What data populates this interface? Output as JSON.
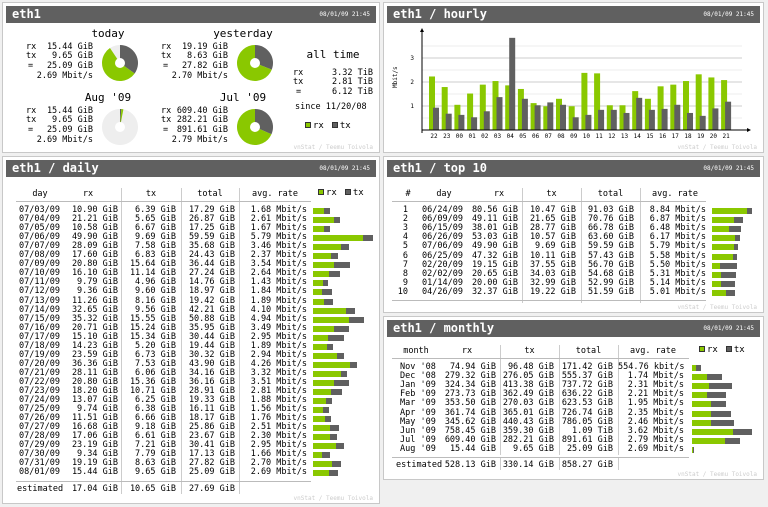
{
  "colors": {
    "rx": "#8ac800",
    "tx": "#606060",
    "remaining": "#eeeeee"
  },
  "timestamp": "08/01/09 21:45",
  "footer": "vnStat / Teemu Toivola",
  "legend": {
    "rx": "rx",
    "tx": "tx"
  },
  "summary": {
    "title": "eth1",
    "labels": {
      "rx": "rx",
      "tx": "tx",
      "total": "="
    },
    "blocks": [
      {
        "name": "today",
        "rx": "15.44 GiB",
        "tx": "9.65 GiB",
        "total": "25.09 GiB",
        "rate": "2.69 Mbit/s",
        "rx_gib": 15.44,
        "tx_gib": 9.65,
        "elapsed_fraction": 0.906
      },
      {
        "name": "yesterday",
        "rx": "19.19 GiB",
        "tx": "8.63 GiB",
        "total": "27.82 GiB",
        "rate": "2.70 Mbit/s",
        "rx_gib": 19.19,
        "tx_gib": 8.63,
        "elapsed_fraction": 1
      },
      {
        "name": "Aug '09",
        "rx": "15.44 GiB",
        "tx": "9.65 GiB",
        "total": "25.09 GiB",
        "rate": "2.69 Mbit/s",
        "rx_gib": 15.44,
        "tx_gib": 9.65,
        "elapsed_fraction": 0.03
      },
      {
        "name": "Jul '09",
        "rx": "609.40 GiB",
        "tx": "282.21 GiB",
        "total": "891.61 GiB",
        "rate": "2.79 Mbit/s",
        "rx_gib": 609.4,
        "tx_gib": 282.21,
        "elapsed_fraction": 1
      }
    ],
    "alltime": {
      "title": "all time",
      "rx": "3.32 TiB",
      "tx": "2.81 TiB",
      "total": "6.12 TiB",
      "since": "since 11/20/08"
    }
  },
  "hourly": {
    "title": "eth1 / hourly",
    "chart_data": {
      "type": "bar",
      "ylabel": "Mbit/s",
      "yticks": [
        "1",
        "2",
        "3"
      ],
      "ylim": [
        0,
        4
      ],
      "grid": true,
      "categories": [
        "22",
        "23",
        "00",
        "01",
        "02",
        "03",
        "04",
        "05",
        "06",
        "07",
        "08",
        "09",
        "10",
        "11",
        "12",
        "13",
        "14",
        "15",
        "16",
        "17",
        "18",
        "19",
        "20",
        "21"
      ],
      "series": [
        {
          "name": "rx",
          "values": [
            2.23,
            1.79,
            1.05,
            1.52,
            1.89,
            2.04,
            1.86,
            1.71,
            1.12,
            0.99,
            1.3,
            0.99,
            2.38,
            2.36,
            1.03,
            1.03,
            1.62,
            1.3,
            1.82,
            1.89,
            2.04,
            2.32,
            2.19,
            2.08
          ]
        },
        {
          "name": "tx",
          "values": [
            0.93,
            0.68,
            0.63,
            0.53,
            0.78,
            1.37,
            3.84,
            1.3,
            1.03,
            1.15,
            1.05,
            0.53,
            0.63,
            0.84,
            0.84,
            0.71,
            1.34,
            0.84,
            0.88,
            1.05,
            0.71,
            0.59,
            0.9,
            1.18
          ]
        }
      ]
    }
  },
  "daily": {
    "title": "eth1 / daily",
    "columns": [
      "day",
      "rx",
      "tx",
      "total",
      "avg. rate"
    ],
    "rows": [
      [
        "07/03/09",
        "10.90 GiB",
        "6.39 GiB",
        "17.29 GiB",
        "1.68 Mbit/s"
      ],
      [
        "07/04/09",
        "21.21 GiB",
        "5.65 GiB",
        "26.87 GiB",
        "2.61 Mbit/s"
      ],
      [
        "07/05/09",
        "10.58 GiB",
        "6.67 GiB",
        "17.25 GiB",
        "1.67 Mbit/s"
      ],
      [
        "07/06/09",
        "49.90 GiB",
        "9.69 GiB",
        "59.59 GiB",
        "5.79 Mbit/s"
      ],
      [
        "07/07/09",
        "28.09 GiB",
        "7.58 GiB",
        "35.68 GiB",
        "3.46 Mbit/s"
      ],
      [
        "07/08/09",
        "17.60 GiB",
        "6.83 GiB",
        "24.43 GiB",
        "2.37 Mbit/s"
      ],
      [
        "07/09/09",
        "20.80 GiB",
        "15.64 GiB",
        "36.44 GiB",
        "3.54 Mbit/s"
      ],
      [
        "07/10/09",
        "16.10 GiB",
        "11.14 GiB",
        "27.24 GiB",
        "2.64 Mbit/s"
      ],
      [
        "07/11/09",
        "9.79 GiB",
        "4.96 GiB",
        "14.76 GiB",
        "1.43 Mbit/s"
      ],
      [
        "07/12/09",
        "9.36 GiB",
        "9.60 GiB",
        "18.97 GiB",
        "1.84 Mbit/s"
      ],
      [
        "07/13/09",
        "11.26 GiB",
        "8.16 GiB",
        "19.42 GiB",
        "1.89 Mbit/s"
      ],
      [
        "07/14/09",
        "32.65 GiB",
        "9.56 GiB",
        "42.21 GiB",
        "4.10 Mbit/s"
      ],
      [
        "07/15/09",
        "35.32 GiB",
        "15.55 GiB",
        "50.88 GiB",
        "4.94 Mbit/s"
      ],
      [
        "07/16/09",
        "20.71 GiB",
        "15.24 GiB",
        "35.95 GiB",
        "3.49 Mbit/s"
      ],
      [
        "07/17/09",
        "15.10 GiB",
        "15.34 GiB",
        "30.44 GiB",
        "2.95 Mbit/s"
      ],
      [
        "07/18/09",
        "14.23 GiB",
        "5.20 GiB",
        "19.44 GiB",
        "1.89 Mbit/s"
      ],
      [
        "07/19/09",
        "23.59 GiB",
        "6.73 GiB",
        "30.32 GiB",
        "2.94 Mbit/s"
      ],
      [
        "07/20/09",
        "36.36 GiB",
        "7.53 GiB",
        "43.90 GiB",
        "4.26 Mbit/s"
      ],
      [
        "07/21/09",
        "28.11 GiB",
        "6.06 GiB",
        "34.16 GiB",
        "3.32 Mbit/s"
      ],
      [
        "07/22/09",
        "20.80 GiB",
        "15.36 GiB",
        "36.16 GiB",
        "3.51 Mbit/s"
      ],
      [
        "07/23/09",
        "18.20 GiB",
        "10.71 GiB",
        "28.91 GiB",
        "2.81 Mbit/s"
      ],
      [
        "07/24/09",
        "13.07 GiB",
        "6.25 GiB",
        "19.33 GiB",
        "1.88 Mbit/s"
      ],
      [
        "07/25/09",
        "9.74 GiB",
        "6.38 GiB",
        "16.11 GiB",
        "1.56 Mbit/s"
      ],
      [
        "07/26/09",
        "11.51 GiB",
        "6.66 GiB",
        "18.17 GiB",
        "1.76 Mbit/s"
      ],
      [
        "07/27/09",
        "16.68 GiB",
        "9.18 GiB",
        "25.86 GiB",
        "2.51 Mbit/s"
      ],
      [
        "07/28/09",
        "17.06 GiB",
        "6.61 GiB",
        "23.67 GiB",
        "2.30 Mbit/s"
      ],
      [
        "07/29/09",
        "23.19 GiB",
        "7.21 GiB",
        "30.41 GiB",
        "2.95 Mbit/s"
      ],
      [
        "07/30/09",
        "9.34 GiB",
        "7.79 GiB",
        "17.13 GiB",
        "1.66 Mbit/s"
      ],
      [
        "07/31/09",
        "19.19 GiB",
        "8.63 GiB",
        "27.82 GiB",
        "2.70 Mbit/s"
      ],
      [
        "08/01/09",
        "15.44 GiB",
        "9.65 GiB",
        "25.09 GiB",
        "2.69 Mbit/s"
      ]
    ],
    "estimated": [
      "estimated",
      "17.04 GiB",
      "10.65 GiB",
      "27.69 GiB"
    ]
  },
  "top10": {
    "title": "eth1 / top 10",
    "columns": [
      "#",
      "day",
      "rx",
      "tx",
      "total",
      "avg. rate"
    ],
    "rows": [
      [
        "1",
        "06/24/09",
        "80.56 GiB",
        "10.47 GiB",
        "91.03 GiB",
        "8.84 Mbit/s"
      ],
      [
        "2",
        "06/09/09",
        "49.11 GiB",
        "21.65 GiB",
        "70.76 GiB",
        "6.87 Mbit/s"
      ],
      [
        "3",
        "06/15/09",
        "38.01 GiB",
        "28.77 GiB",
        "66.78 GiB",
        "6.48 Mbit/s"
      ],
      [
        "4",
        "06/26/09",
        "53.03 GiB",
        "10.57 GiB",
        "63.60 GiB",
        "6.17 Mbit/s"
      ],
      [
        "5",
        "07/06/09",
        "49.90 GiB",
        "9.69 GiB",
        "59.59 GiB",
        "5.79 Mbit/s"
      ],
      [
        "6",
        "06/25/09",
        "47.32 GiB",
        "10.11 GiB",
        "57.43 GiB",
        "5.58 Mbit/s"
      ],
      [
        "7",
        "02/20/09",
        "19.15 GiB",
        "37.55 GiB",
        "56.70 GiB",
        "5.50 Mbit/s"
      ],
      [
        "8",
        "02/02/09",
        "20.65 GiB",
        "34.03 GiB",
        "54.68 GiB",
        "5.31 Mbit/s"
      ],
      [
        "9",
        "01/14/09",
        "20.00 GiB",
        "32.99 GiB",
        "52.99 GiB",
        "5.14 Mbit/s"
      ],
      [
        "10",
        "04/26/09",
        "32.37 GiB",
        "19.22 GiB",
        "51.59 GiB",
        "5.01 Mbit/s"
      ]
    ]
  },
  "monthly": {
    "title": "eth1 / monthly",
    "columns": [
      "month",
      "rx",
      "tx",
      "total",
      "avg. rate"
    ],
    "rows": [
      [
        "Nov '08",
        "74.94 GiB",
        "96.48 GiB",
        "171.42 GiB",
        "554.76 kbit/s"
      ],
      [
        "Dec '08",
        "279.32 GiB",
        "276.05 GiB",
        "555.37 GiB",
        "1.74 Mbit/s"
      ],
      [
        "Jan '09",
        "324.34 GiB",
        "413.38 GiB",
        "737.72 GiB",
        "2.31 Mbit/s"
      ],
      [
        "Feb '09",
        "273.73 GiB",
        "362.49 GiB",
        "636.22 GiB",
        "2.21 Mbit/s"
      ],
      [
        "Mar '09",
        "353.50 GiB",
        "270.03 GiB",
        "623.53 GiB",
        "1.95 Mbit/s"
      ],
      [
        "Apr '09",
        "361.74 GiB",
        "365.01 GiB",
        "726.74 GiB",
        "2.35 Mbit/s"
      ],
      [
        "May '09",
        "345.62 GiB",
        "440.43 GiB",
        "786.05 GiB",
        "2.46 Mbit/s"
      ],
      [
        "Jun '09",
        "758.45 GiB",
        "359.30 GiB",
        "1.09 TiB",
        "3.62 Mbit/s"
      ],
      [
        "Jul '09",
        "609.40 GiB",
        "282.21 GiB",
        "891.61 GiB",
        "2.79 Mbit/s"
      ],
      [
        "Aug '09",
        "15.44 GiB",
        "9.65 GiB",
        "25.09 GiB",
        "2.69 Mbit/s"
      ]
    ],
    "estimated": [
      "estimated",
      "528.13 GiB",
      "330.14 GiB",
      "858.27 GiB"
    ]
  }
}
